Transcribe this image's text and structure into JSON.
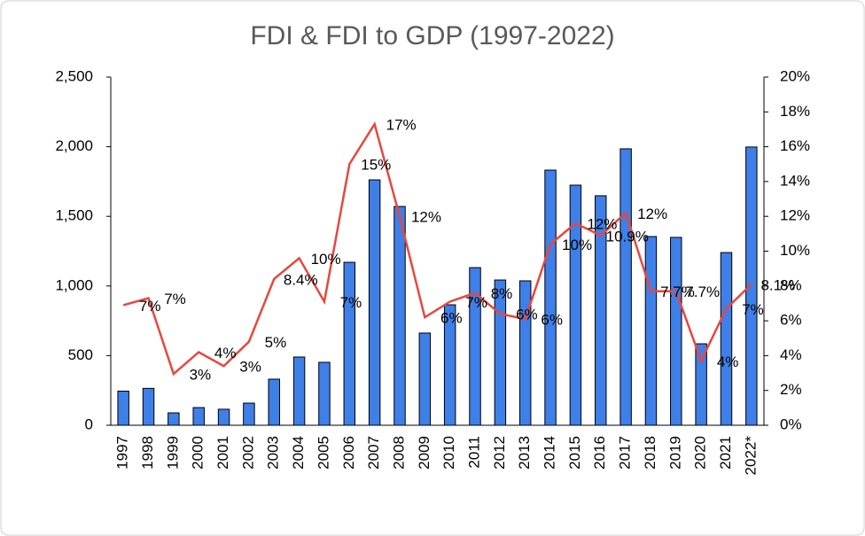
{
  "chart_data": {
    "type": "bar_line",
    "title": "FDI & FDI to GDP (1997-2022)",
    "categories": [
      "1997",
      "1998",
      "1999",
      "2000",
      "2001",
      "2002",
      "2003",
      "2004",
      "2005",
      "2006",
      "2007",
      "2008",
      "2009",
      "2010",
      "2011",
      "2012",
      "2013",
      "2014",
      "2015",
      "2016",
      "2017",
      "2018",
      "2019",
      "2020",
      "2021",
      "2022*"
    ],
    "series": [
      {
        "type": "bar",
        "color": "#3f7fe8",
        "values": [
          245,
          265,
          89,
          127,
          115,
          159,
          331,
          490,
          452,
          1170,
          1762,
          1571,
          662,
          865,
          1132,
          1043,
          1037,
          1832,
          1724,
          1648,
          1985,
          1355,
          1349,
          585,
          1240,
          1998
        ]
      },
      {
        "type": "line",
        "axis": "y2",
        "color": "#e8473c",
        "values": [
          6.9,
          7.3,
          2.95,
          4.2,
          3.4,
          4.8,
          8.4,
          9.6,
          7.1,
          15.0,
          17.3,
          12.0,
          6.2,
          7.1,
          7.6,
          6.4,
          6.1,
          10.4,
          11.6,
          10.9,
          12.2,
          7.7,
          7.7,
          3.7,
          6.7,
          8.1
        ],
        "value_labels": [
          "7%",
          "7%",
          "3%",
          "4%",
          "3%",
          "5%",
          "8.4%",
          "10%",
          "7%",
          "15%",
          "17%",
          "12%",
          "6%",
          "7%",
          "8%",
          "6%",
          "6%",
          "10%",
          "12%",
          "10.9%",
          "12%",
          "7.7%",
          "7.7%",
          "4%",
          "7%",
          "8.1%"
        ]
      }
    ],
    "ylim": [
      0,
      2500
    ],
    "yticks": [
      0,
      {
        "value": 500,
        "label": "500"
      },
      {
        "value": 1000,
        "label": "1,000"
      },
      {
        "value": 1500,
        "label": "1,500"
      },
      {
        "value": 2000,
        "label": "2,000"
      },
      {
        "value": 2500,
        "label": "2,500"
      }
    ],
    "y2lim": [
      0,
      20
    ],
    "y2ticks": [
      {
        "value": 0,
        "label": "0%"
      },
      {
        "value": 2,
        "label": "2%"
      },
      {
        "value": 4,
        "label": "4%"
      },
      {
        "value": 6,
        "label": "6%"
      },
      {
        "value": 8,
        "label": "8%"
      },
      {
        "value": 10,
        "label": "10%"
      },
      {
        "value": 12,
        "label": "12%"
      },
      {
        "value": 14,
        "label": "14%"
      },
      {
        "value": 16,
        "label": "16%"
      },
      {
        "value": 18,
        "label": "18%"
      },
      {
        "value": 20,
        "label": "20%"
      }
    ]
  }
}
